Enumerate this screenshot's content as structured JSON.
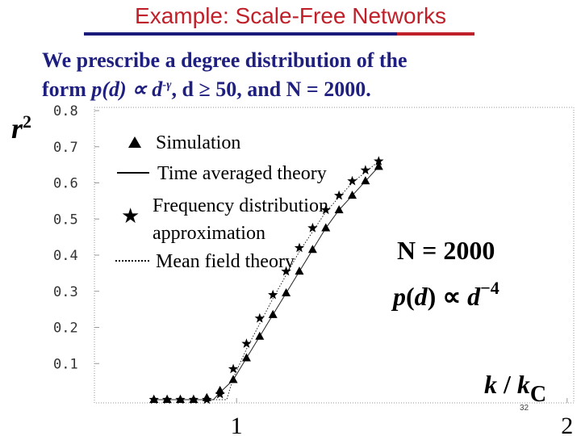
{
  "title": "Example: Scale-Free Networks",
  "subtitle_line1": "We prescribe a degree distribution of the",
  "subtitle_line2": {
    "prefix": "form",
    "formula": "p(d) ∝ d",
    "exponent": "-γ",
    "condition": ", d ≥ 50, and N = 2000."
  },
  "page_number": "32",
  "chart_data": {
    "type": "line",
    "ylabel": "r²",
    "xlabel": "k / kC",
    "y_ticks": [
      "0.8",
      "0.7",
      "0.6",
      "0.5",
      "0.4",
      "0.3",
      "0.2",
      "0.1"
    ],
    "x_ticks": [
      "1",
      "2"
    ],
    "ylim": [
      0,
      0.8
    ],
    "xlim": [
      0.57,
      2.02
    ],
    "legend": [
      "Simulation",
      "Time averaged theory",
      "Frequency distribution approximation",
      "Mean field theory"
    ],
    "annotations": [
      "N = 2000",
      "p(d) ∝ d⁻⁴"
    ],
    "series": [
      {
        "name": "Simulation",
        "marker": "triangle",
        "x": [
          0.75,
          0.79,
          0.83,
          0.87,
          0.91,
          0.95,
          0.99,
          1.03,
          1.07,
          1.11,
          1.15,
          1.19,
          1.23,
          1.27,
          1.31,
          1.35,
          1.39,
          1.43
        ],
        "y": [
          0.0,
          0.0,
          0.0,
          0.0,
          0.005,
          0.025,
          0.055,
          0.115,
          0.175,
          0.235,
          0.295,
          0.355,
          0.415,
          0.475,
          0.525,
          0.565,
          0.605,
          0.645
        ]
      },
      {
        "name": "Frequency distribution approximation",
        "marker": "star",
        "x": [
          0.75,
          0.79,
          0.83,
          0.87,
          0.91,
          0.95,
          0.99,
          1.03,
          1.07,
          1.11,
          1.15,
          1.19,
          1.23,
          1.27,
          1.31,
          1.35,
          1.39,
          1.43
        ],
        "y": [
          0.0,
          0.0,
          0.0,
          0.0,
          0.0,
          0.015,
          0.085,
          0.155,
          0.225,
          0.29,
          0.355,
          0.42,
          0.475,
          0.525,
          0.565,
          0.605,
          0.635,
          0.66
        ]
      },
      {
        "name": "Time averaged theory",
        "marker": "line",
        "x": [
          0.75,
          0.93,
          0.95,
          0.99,
          1.03,
          1.07,
          1.11,
          1.15,
          1.19,
          1.23,
          1.27,
          1.31,
          1.35,
          1.39,
          1.43
        ],
        "y": [
          0.0,
          0.0,
          0.02,
          0.055,
          0.115,
          0.175,
          0.235,
          0.295,
          0.355,
          0.415,
          0.475,
          0.525,
          0.565,
          0.605,
          0.645
        ]
      },
      {
        "name": "Mean field theory",
        "marker": "dotted",
        "x": [
          0.75,
          0.97,
          0.99,
          1.03,
          1.07,
          1.11,
          1.15,
          1.19,
          1.23,
          1.27,
          1.31,
          1.35,
          1.39,
          1.43
        ],
        "y": [
          0.0,
          0.0,
          0.06,
          0.14,
          0.21,
          0.28,
          0.345,
          0.41,
          0.465,
          0.52,
          0.56,
          0.6,
          0.63,
          0.66
        ]
      }
    ]
  }
}
